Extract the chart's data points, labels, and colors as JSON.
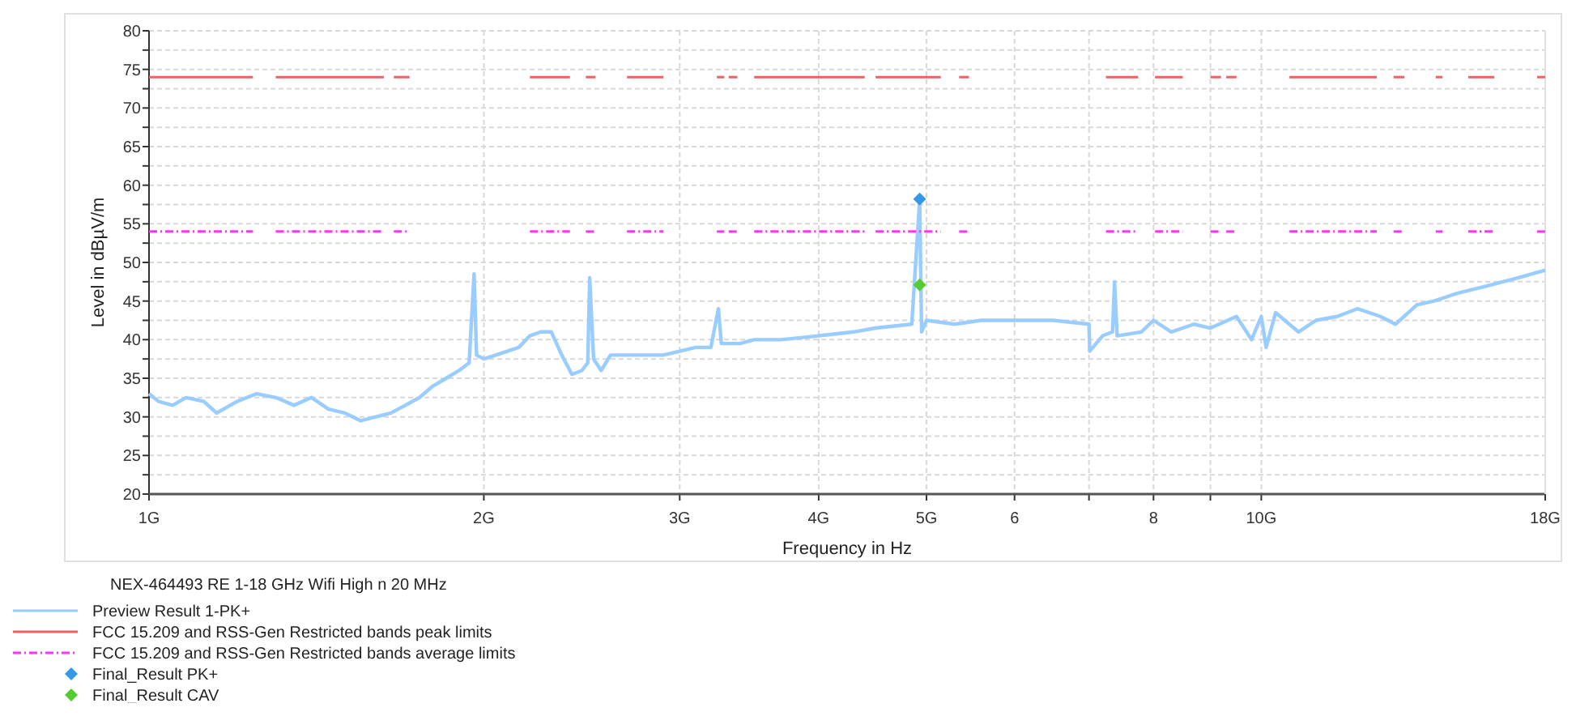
{
  "chart_data": {
    "type": "line",
    "xlabel": "Frequency in Hz",
    "ylabel": "Level in dBµV/m",
    "legend_title": "NEX-464493 RE 1-18 GHz Wifi High n  20 MHz",
    "log": "x",
    "xlim": [
      1,
      18
    ],
    "xticks": [
      {
        "value": 1,
        "label": "1G"
      },
      {
        "value": 2,
        "label": "2G"
      },
      {
        "value": 3,
        "label": "3G"
      },
      {
        "value": 4,
        "label": "4G"
      },
      {
        "value": 5,
        "label": "5G"
      },
      6,
      {
        "value": 7,
        "label": null
      },
      8,
      {
        "value": 9,
        "label": null
      },
      {
        "value": 10,
        "label": "10G"
      },
      {
        "value": 18,
        "label": "18G"
      }
    ],
    "ylim": [
      20,
      80
    ],
    "yticks": [
      20,
      {
        "value": 22.5,
        "label": null
      },
      25,
      {
        "value": 27.5,
        "label": null
      },
      30,
      {
        "value": 32.5,
        "label": null
      },
      35,
      {
        "value": 37.5,
        "label": null
      },
      40,
      {
        "value": 42.5,
        "label": null
      },
      45,
      {
        "value": 47.5,
        "label": null
      },
      50,
      {
        "value": 52.5,
        "label": null
      },
      55,
      {
        "value": 57.5,
        "label": null
      },
      60,
      {
        "value": 62.5,
        "label": null
      },
      65,
      {
        "value": 67.5,
        "label": null
      },
      70,
      {
        "value": 72.5,
        "label": null
      },
      75,
      {
        "value": 77.5,
        "label": null
      },
      80
    ],
    "grid": true,
    "legend": "bottom",
    "series": [
      {
        "name": "Preview Result 1-PK+",
        "color": "#99ccff",
        "line_style": "solid",
        "x": [
          1.0,
          1.02,
          1.05,
          1.08,
          1.12,
          1.15,
          1.2,
          1.25,
          1.3,
          1.35,
          1.4,
          1.45,
          1.5,
          1.55,
          1.6,
          1.65,
          1.7,
          1.75,
          1.8,
          1.85,
          1.9,
          1.94,
          1.96,
          1.97,
          2.0,
          2.05,
          2.1,
          2.15,
          2.2,
          2.25,
          2.3,
          2.35,
          2.4,
          2.45,
          2.48,
          2.49,
          2.51,
          2.55,
          2.6,
          2.7,
          2.8,
          2.9,
          3.0,
          3.1,
          3.2,
          3.25,
          3.27,
          3.4,
          3.5,
          3.7,
          4.0,
          4.3,
          4.5,
          4.85,
          4.93,
          4.95,
          5.0,
          5.3,
          5.6,
          6.0,
          6.5,
          7.0,
          7.01,
          7.2,
          7.35,
          7.38,
          7.42,
          7.8,
          8.0,
          8.3,
          8.7,
          9.0,
          9.5,
          9.8,
          10.0,
          10.1,
          10.3,
          10.8,
          11.2,
          11.7,
          12.2,
          12.8,
          13.2,
          13.8,
          14.3,
          15.0,
          16.0,
          17.0,
          18.0
        ],
        "values": [
          33,
          32,
          31.5,
          32.5,
          32,
          30.5,
          32,
          33,
          32.5,
          31.5,
          32.5,
          31,
          30.5,
          29.5,
          30,
          30.5,
          31.5,
          32.5,
          34,
          35,
          36,
          37,
          48.5,
          38,
          37.5,
          38,
          38.5,
          39,
          40.5,
          41,
          41,
          38,
          35.5,
          36,
          37,
          48,
          37.5,
          36,
          38,
          38,
          38,
          38,
          38.5,
          39,
          39,
          44,
          39.5,
          39.5,
          40,
          40,
          40.5,
          41,
          41.5,
          42,
          58,
          41,
          42.5,
          42,
          42.5,
          42.5,
          42.5,
          42,
          38.5,
          40.5,
          41,
          47.5,
          40.5,
          41,
          42.5,
          41,
          42,
          41.5,
          43,
          40,
          43,
          39,
          43.5,
          41,
          42.5,
          43,
          44,
          43,
          42,
          44.5,
          45,
          46,
          47,
          48,
          49
        ]
      },
      {
        "name": "FCC 15.209 and RSS-Gen Restricted bands peak limits",
        "color": "#f06060",
        "line_style": "solid",
        "x": [
          1.0,
          1.24
        ],
        "values": [
          74,
          74
        ]
      },
      {
        "color": "#f06060",
        "line_style": "solid",
        "x": [
          1.3,
          1.626
        ],
        "values": [
          74,
          74
        ]
      },
      {
        "color": "#f06060",
        "line_style": "solid",
        "x": [
          1.66,
          1.715
        ],
        "values": [
          74,
          74
        ]
      },
      {
        "color": "#f06060",
        "line_style": "solid",
        "x": [
          2.2,
          2.39
        ],
        "values": [
          74,
          74
        ]
      },
      {
        "color": "#f06060",
        "line_style": "solid",
        "x": [
          2.47,
          2.52
        ],
        "values": [
          74,
          74
        ]
      },
      {
        "color": "#f06060",
        "line_style": "solid",
        "x": [
          2.69,
          2.9
        ],
        "values": [
          74,
          74
        ]
      },
      {
        "color": "#f06060",
        "line_style": "solid",
        "x": [
          3.24,
          3.29
        ],
        "values": [
          74,
          74
        ]
      },
      {
        "color": "#f06060",
        "line_style": "solid",
        "x": [
          3.32,
          3.38
        ],
        "values": [
          74,
          74
        ]
      },
      {
        "color": "#f06060",
        "line_style": "solid",
        "x": [
          3.5,
          4.4
        ],
        "values": [
          74,
          74
        ]
      },
      {
        "color": "#f06060",
        "line_style": "solid",
        "x": [
          4.5,
          5.15
        ],
        "values": [
          74,
          74
        ]
      },
      {
        "color": "#f06060",
        "line_style": "solid",
        "x": [
          5.35,
          5.46
        ],
        "values": [
          74,
          74
        ]
      },
      {
        "color": "#f06060",
        "line_style": "solid",
        "x": [
          7.25,
          7.75
        ],
        "values": [
          74,
          74
        ]
      },
      {
        "color": "#f06060",
        "line_style": "solid",
        "x": [
          8.025,
          8.5
        ],
        "values": [
          74,
          74
        ]
      },
      {
        "color": "#f06060",
        "line_style": "solid",
        "x": [
          9.0,
          9.2
        ],
        "values": [
          74,
          74
        ]
      },
      {
        "color": "#f06060",
        "line_style": "solid",
        "x": [
          9.3,
          9.5
        ],
        "values": [
          74,
          74
        ]
      },
      {
        "color": "#f06060",
        "line_style": "solid",
        "x": [
          10.6,
          12.7
        ],
        "values": [
          74,
          74
        ]
      },
      {
        "color": "#f06060",
        "line_style": "solid",
        "x": [
          13.15,
          13.45
        ],
        "values": [
          74,
          74
        ]
      },
      {
        "color": "#f06060",
        "line_style": "solid",
        "x": [
          14.35,
          14.55
        ],
        "values": [
          74,
          74
        ]
      },
      {
        "color": "#f06060",
        "line_style": "solid",
        "x": [
          15.35,
          16.2
        ],
        "values": [
          74,
          74
        ]
      },
      {
        "color": "#f06060",
        "line_style": "solid",
        "x": [
          17.7,
          18.0
        ],
        "values": [
          74,
          74
        ]
      },
      {
        "name": "FCC 15.209 and RSS-Gen Restricted bands average limits",
        "color": "#ff33ff",
        "line_style": "dashed",
        "x": [
          1.0,
          1.24
        ],
        "values": [
          54,
          54
        ]
      },
      {
        "color": "#ff33ff",
        "line_style": "dashed",
        "x": [
          1.3,
          1.626
        ],
        "values": [
          54,
          54
        ]
      },
      {
        "color": "#ff33ff",
        "line_style": "dashed",
        "x": [
          1.66,
          1.715
        ],
        "values": [
          54,
          54
        ]
      },
      {
        "color": "#ff33ff",
        "line_style": "dashed",
        "x": [
          2.2,
          2.39
        ],
        "values": [
          54,
          54
        ]
      },
      {
        "color": "#ff33ff",
        "line_style": "dashed",
        "x": [
          2.47,
          2.52
        ],
        "values": [
          54,
          54
        ]
      },
      {
        "color": "#ff33ff",
        "line_style": "dashed",
        "x": [
          2.69,
          2.9
        ],
        "values": [
          54,
          54
        ]
      },
      {
        "color": "#ff33ff",
        "line_style": "dashed",
        "x": [
          3.24,
          3.29
        ],
        "values": [
          54,
          54
        ]
      },
      {
        "color": "#ff33ff",
        "line_style": "dashed",
        "x": [
          3.32,
          3.38
        ],
        "values": [
          54,
          54
        ]
      },
      {
        "color": "#ff33ff",
        "line_style": "dashed",
        "x": [
          3.5,
          4.4
        ],
        "values": [
          54,
          54
        ]
      },
      {
        "color": "#ff33ff",
        "line_style": "dashed",
        "x": [
          4.5,
          5.15
        ],
        "values": [
          54,
          54
        ]
      },
      {
        "color": "#ff33ff",
        "line_style": "dashed",
        "x": [
          5.35,
          5.46
        ],
        "values": [
          54,
          54
        ]
      },
      {
        "color": "#ff33ff",
        "line_style": "dashed",
        "x": [
          7.25,
          7.75
        ],
        "values": [
          54,
          54
        ]
      },
      {
        "color": "#ff33ff",
        "line_style": "dashed",
        "x": [
          8.025,
          8.5
        ],
        "values": [
          54,
          54
        ]
      },
      {
        "color": "#ff33ff",
        "line_style": "dashed",
        "x": [
          9.0,
          9.2
        ],
        "values": [
          54,
          54
        ]
      },
      {
        "color": "#ff33ff",
        "line_style": "dashed",
        "x": [
          9.3,
          9.5
        ],
        "values": [
          54,
          54
        ]
      },
      {
        "color": "#ff33ff",
        "line_style": "dashed",
        "x": [
          10.6,
          12.7
        ],
        "values": [
          54,
          54
        ]
      },
      {
        "color": "#ff33ff",
        "line_style": "dashed",
        "x": [
          13.15,
          13.45
        ],
        "values": [
          54,
          54
        ]
      },
      {
        "color": "#ff33ff",
        "line_style": "dashed",
        "x": [
          14.35,
          14.55
        ],
        "values": [
          54,
          54
        ]
      },
      {
        "color": "#ff33ff",
        "line_style": "dashed",
        "x": [
          15.35,
          16.2
        ],
        "values": [
          54,
          54
        ]
      },
      {
        "color": "#ff33ff",
        "line_style": "dashed",
        "x": [
          17.7,
          18.0
        ],
        "values": [
          54,
          54
        ]
      },
      {
        "name": "Final_Result PK+",
        "type": "scatter",
        "marker": "diamond",
        "color": "#3399e6",
        "x": [
          4.93
        ],
        "values": [
          58.2
        ]
      },
      {
        "name": "Final_Result CAV",
        "type": "scatter",
        "marker": "diamond",
        "color": "#55cc33",
        "x": [
          4.93
        ],
        "values": [
          47.1
        ]
      }
    ]
  }
}
